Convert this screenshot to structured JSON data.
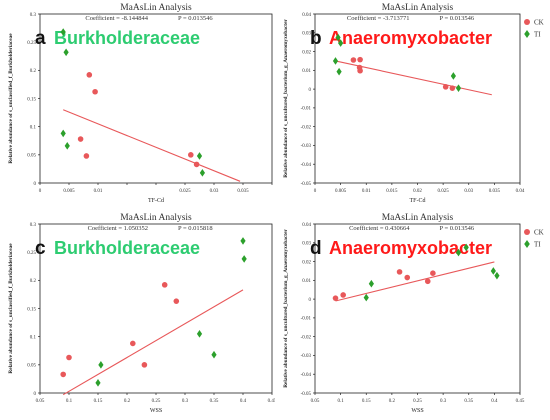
{
  "legend": {
    "items": [
      {
        "label": "CK",
        "color": "#e8585a",
        "shape": "circle"
      },
      {
        "label": "TI",
        "color": "#2ca02c",
        "shape": "diamond"
      }
    ]
  },
  "chart_data": [
    {
      "type": "scatter",
      "panel_letter": "a",
      "title": "MaAsLin Analysis",
      "coef_label": "Coefficient = -8.144844",
      "p_label": "P = 0.013546",
      "taxon": "Burkholderaceae",
      "taxon_color": "#2ecc71",
      "xlabel": "TF-Cd",
      "ylabel": "Relative abundance of s_unclassified_f_Burkholderiaceae",
      "xlim": [
        0,
        0.04
      ],
      "ylim": [
        0,
        0.3
      ],
      "xticks": [
        0,
        0.005,
        0.01,
        0.015,
        0.02,
        0.025,
        0.03,
        0.035,
        0.04
      ],
      "xtick_labels": [
        "0",
        "0.005",
        "0.01",
        "",
        "",
        "0.025",
        "0.03",
        "0.035",
        ""
      ],
      "yticks": [
        0,
        0.05,
        0.1,
        0.15,
        0.2,
        0.25,
        0.3
      ],
      "ytick_labels": [
        "0",
        "0.05",
        "0.1",
        "0.15",
        "0.2",
        "0.25",
        "0.3"
      ],
      "trend": {
        "x": [
          0.004,
          0.0345
        ],
        "y": [
          0.13,
          0.003
        ]
      },
      "series": [
        {
          "name": "CK",
          "points": [
            [
              0.0085,
              0.192
            ],
            [
              0.0095,
              0.162
            ],
            [
              0.007,
              0.078
            ],
            [
              0.008,
              0.048
            ],
            [
              0.026,
              0.05
            ],
            [
              0.027,
              0.033
            ]
          ]
        },
        {
          "name": "TI",
          "points": [
            [
              0.004,
              0.268
            ],
            [
              0.0045,
              0.232
            ],
            [
              0.004,
              0.088
            ],
            [
              0.0047,
              0.066
            ],
            [
              0.0275,
              0.048
            ],
            [
              0.028,
              0.018
            ]
          ]
        }
      ]
    },
    {
      "type": "scatter",
      "panel_letter": "b",
      "title": "MaAsLin Analysis",
      "coef_label": "Coefficient = -3.713771",
      "p_label": "P = 0.013546",
      "taxon": "Anaeromyxobacter",
      "taxon_color": "#ff1a1a",
      "xlabel": "TF-Cd",
      "ylabel": "Relative abundance of s_uncultured_bacterium_g_Anaeromyxobacter",
      "xlim": [
        0,
        0.04
      ],
      "ylim": [
        -0.05,
        0.04
      ],
      "xticks": [
        0,
        0.005,
        0.01,
        0.015,
        0.02,
        0.025,
        0.03,
        0.035,
        0.04
      ],
      "xtick_labels": [
        "0",
        "0.005",
        "0.01",
        "0.015",
        "0.02",
        "0.025",
        "0.03",
        "0.035",
        "0.04"
      ],
      "yticks": [
        -0.05,
        -0.04,
        -0.03,
        -0.02,
        -0.01,
        0,
        0.01,
        0.02,
        0.03,
        0.04
      ],
      "ytick_labels": [
        "-0.05",
        "-0.04",
        "-0.03",
        "-0.02",
        "-0.01",
        "0",
        "0.01",
        "0.02",
        "0.03",
        "0.04"
      ],
      "trend": {
        "x": [
          0.004,
          0.0345
        ],
        "y": [
          0.015,
          -0.003
        ]
      },
      "series": [
        {
          "name": "CK",
          "points": [
            [
              0.0075,
              0.0155
            ],
            [
              0.0088,
              0.0157
            ],
            [
              0.0087,
              0.0115
            ],
            [
              0.0088,
              0.0098
            ],
            [
              0.0255,
              0.0012
            ],
            [
              0.0268,
              0.0005
            ]
          ]
        },
        {
          "name": "TI",
          "points": [
            [
              0.004,
              0.015
            ],
            [
              0.0045,
              0.0275
            ],
            [
              0.005,
              0.0245
            ],
            [
              0.0047,
              0.0093
            ],
            [
              0.027,
              0.007
            ],
            [
              0.028,
              0.0005
            ]
          ]
        }
      ]
    },
    {
      "type": "scatter",
      "panel_letter": "c",
      "title": "MaAsLin Analysis",
      "coef_label": "Coefficient = 1.050352",
      "p_label": "P = 0.015818",
      "taxon": "Burkholderaceae",
      "taxon_color": "#2ecc71",
      "xlabel": "WSS",
      "ylabel": "Relative abundance of s_unclassified_f_Burkholderiaceae",
      "xlim": [
        0.05,
        0.45
      ],
      "ylim": [
        0,
        0.3
      ],
      "xticks": [
        0.05,
        0.1,
        0.15,
        0.2,
        0.25,
        0.3,
        0.35,
        0.4,
        0.45
      ],
      "xtick_labels": [
        "0.05",
        "0.1",
        "0.15",
        "0.2",
        "0.25",
        "0.3",
        "0.35",
        "0.4",
        "0.45"
      ],
      "yticks": [
        0,
        0.05,
        0.1,
        0.15,
        0.2,
        0.25,
        0.3
      ],
      "ytick_labels": [
        "0",
        "0.05",
        "0.1",
        "0.15",
        "0.2",
        "0.25",
        "0.3"
      ],
      "trend": {
        "x": [
          0.09,
          0.4
        ],
        "y": [
          -0.003,
          0.183
        ]
      },
      "series": [
        {
          "name": "CK",
          "points": [
            [
              0.09,
              0.033
            ],
            [
              0.1,
              0.063
            ],
            [
              0.21,
              0.088
            ],
            [
              0.23,
              0.05
            ],
            [
              0.265,
              0.192
            ],
            [
              0.285,
              0.163
            ]
          ]
        },
        {
          "name": "TI",
          "points": [
            [
              0.15,
              0.018
            ],
            [
              0.155,
              0.05
            ],
            [
              0.325,
              0.105
            ],
            [
              0.35,
              0.068
            ],
            [
              0.4,
              0.27
            ],
            [
              0.402,
              0.238
            ]
          ]
        }
      ]
    },
    {
      "type": "scatter",
      "panel_letter": "d",
      "title": "MaAsLin Analysis",
      "coef_label": "Coefficient = 0.430664",
      "p_label": "P = 0.013546",
      "taxon": "Anaeromyxobacter",
      "taxon_color": "#ff1a1a",
      "xlabel": "WSS",
      "ylabel": "Relative abundance of s_uncultured_bacterium_g_Anaeromyxobacter",
      "xlim": [
        0.05,
        0.45
      ],
      "ylim": [
        -0.05,
        0.04
      ],
      "xticks": [
        0.05,
        0.1,
        0.15,
        0.2,
        0.25,
        0.3,
        0.35,
        0.4,
        0.45
      ],
      "xtick_labels": [
        "0.05",
        "0.1",
        "0.15",
        "0.2",
        "0.25",
        "0.3",
        "0.35",
        "0.4",
        "0.45"
      ],
      "yticks": [
        -0.05,
        -0.04,
        -0.03,
        -0.02,
        -0.01,
        0,
        0.01,
        0.02,
        0.03,
        0.04
      ],
      "ytick_labels": [
        "-0.05",
        "-0.04",
        "-0.03",
        "-0.02",
        "-0.01",
        "0",
        "0.01",
        "0.02",
        "0.03",
        "0.04"
      ],
      "trend": {
        "x": [
          0.09,
          0.4
        ],
        "y": [
          -0.001,
          0.0198
        ]
      },
      "series": [
        {
          "name": "CK",
          "points": [
            [
              0.09,
              0.0005
            ],
            [
              0.105,
              0.0022
            ],
            [
              0.215,
              0.0145
            ],
            [
              0.23,
              0.0115
            ],
            [
              0.27,
              0.0095
            ],
            [
              0.28,
              0.0138
            ]
          ]
        },
        {
          "name": "TI",
          "points": [
            [
              0.15,
              0.0008
            ],
            [
              0.16,
              0.0082
            ],
            [
              0.33,
              0.0248
            ],
            [
              0.345,
              0.0275
            ],
            [
              0.398,
              0.015
            ],
            [
              0.405,
              0.0125
            ]
          ]
        }
      ]
    }
  ]
}
